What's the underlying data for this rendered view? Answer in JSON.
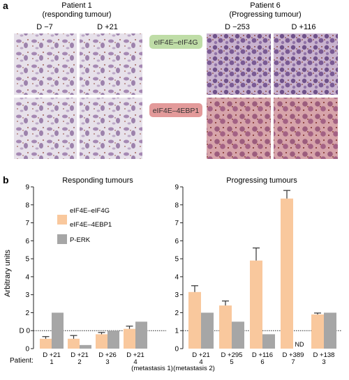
{
  "panel_a": {
    "label": "a",
    "patient1_title": "Patient 1",
    "patient1_subtitle": "(responding tumour)",
    "patient6_title": "Patient 6",
    "patient6_subtitle": "(Progressing tumour)",
    "days": [
      "D −7",
      "D +21",
      "D −253",
      "D +116"
    ],
    "badge_top": "eIF4E–eIF4G",
    "badge_bottom": "eIF4E–4EBP1",
    "colors": {
      "badge_top_bg": "#bfdda7",
      "badge_bottom_bg": "#e39a9a",
      "stain_light_bg": "#e8e2ec",
      "stain_dark_bg": "#b08fb8",
      "stain_pink_bg": "#d9a7ad"
    }
  },
  "panel_b": {
    "label": "b",
    "patient_label": "Patient:",
    "dotted_line_label": "D 0",
    "metastasis_1": "(metastasis 1)",
    "metastasis_2": "(metastasis 2)",
    "nd_label": "ND"
  },
  "chart_data": [
    {
      "type": "bar",
      "title": "Responding tumours",
      "ylabel": "Arbitrary units",
      "ylim": [
        0,
        9
      ],
      "yticks": [
        "0",
        "1",
        "2",
        "3",
        "4",
        "5",
        "6",
        "7",
        "8",
        "9"
      ],
      "categories": [
        "D +21",
        "D +21",
        "D +26",
        "D +21"
      ],
      "patients": [
        "1",
        "2",
        "3",
        "4"
      ],
      "reference_line": 1,
      "series": [
        {
          "name": "eIF4E–eIF4G / eIF4E–4EBP1",
          "color": "#f9c89d",
          "values": [
            0.55,
            0.55,
            0.8,
            1.1
          ],
          "errors": [
            0.12,
            0.18,
            0.1,
            0.15
          ]
        },
        {
          "name": "P-ERK",
          "color": "#a6a6a6",
          "values": [
            2.0,
            0.2,
            1.0,
            1.5
          ],
          "errors": [
            0,
            0,
            0,
            0
          ]
        }
      ],
      "legend": {
        "position": "top-left"
      }
    },
    {
      "type": "bar",
      "title": "Progressing tumours",
      "ylabel": "",
      "ylim": [
        0,
        9
      ],
      "yticks": [
        "0",
        "1",
        "2",
        "3",
        "4",
        "5",
        "6",
        "7",
        "8",
        "9"
      ],
      "categories": [
        "D +21",
        "D +295",
        "D +116",
        "D +389",
        "D +138"
      ],
      "patients": [
        "4",
        "5",
        "6",
        "7",
        "3"
      ],
      "reference_line": 1,
      "series": [
        {
          "name": "eIF4E–eIF4G / eIF4E–4EBP1",
          "color": "#f9c89d",
          "values": [
            3.15,
            2.4,
            4.9,
            8.35,
            1.9
          ],
          "errors": [
            0.35,
            0.25,
            0.7,
            0.45,
            0.08
          ]
        },
        {
          "name": "P-ERK",
          "color": "#a6a6a6",
          "values": [
            2.0,
            1.5,
            0.8,
            null,
            2.0
          ],
          "errors": [
            0,
            0,
            0,
            0,
            0
          ]
        }
      ]
    }
  ],
  "legend_items": [
    {
      "label": "eIF4E–eIF4G",
      "color": "#f9c89d"
    },
    {
      "label": "eIF4E–4EBP1",
      "color": ""
    },
    {
      "label": "P-ERK",
      "color": "#a6a6a6"
    }
  ]
}
